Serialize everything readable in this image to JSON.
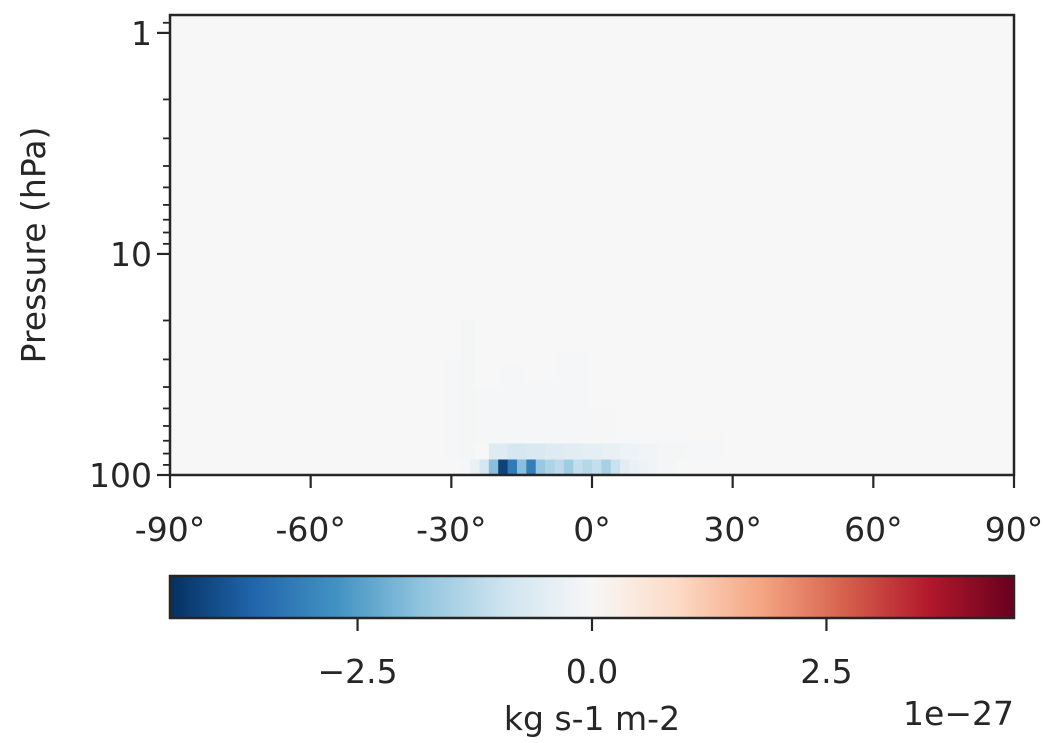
{
  "chart_data": {
    "type": "heatmap",
    "title": "",
    "xlabel": "",
    "ylabel": "Pressure (hPa)",
    "x_ticks": [
      "-90°",
      "-60°",
      "-30°",
      "0°",
      "30°",
      "60°",
      "90°"
    ],
    "x_tick_values": [
      -90,
      -60,
      -30,
      0,
      30,
      60,
      90
    ],
    "xlim": [
      -90,
      90
    ],
    "y_ticks": [
      "1",
      "10",
      "100"
    ],
    "y_tick_values": [
      1,
      10,
      100
    ],
    "ylim": [
      1,
      100
    ],
    "y_scale": "log",
    "y_inverted": true,
    "background_value": 0,
    "cells": [
      {
        "lat": [
          -28,
          -26
        ],
        "p": [
          85,
          100
        ],
        "value": -0.05
      },
      {
        "lat": [
          -26,
          -24
        ],
        "p": [
          85,
          100
        ],
        "value": -0.3
      },
      {
        "lat": [
          -24,
          -22
        ],
        "p": [
          85,
          100
        ],
        "value": -0.8
      },
      {
        "lat": [
          -22,
          -20
        ],
        "p": [
          85,
          100
        ],
        "value": -1.9
      },
      {
        "lat": [
          -20,
          -18
        ],
        "p": [
          85,
          100
        ],
        "value": -4.2
      },
      {
        "lat": [
          -18,
          -16
        ],
        "p": [
          85,
          100
        ],
        "value": -3.2
      },
      {
        "lat": [
          -16,
          -14
        ],
        "p": [
          85,
          100
        ],
        "value": -1.9
      },
      {
        "lat": [
          -14,
          -12
        ],
        "p": [
          85,
          100
        ],
        "value": -3.1
      },
      {
        "lat": [
          -12,
          -10
        ],
        "p": [
          85,
          100
        ],
        "value": -1.7
      },
      {
        "lat": [
          -10,
          -8
        ],
        "p": [
          85,
          100
        ],
        "value": -1.4
      },
      {
        "lat": [
          -8,
          -6
        ],
        "p": [
          85,
          100
        ],
        "value": -1.2
      },
      {
        "lat": [
          -6,
          -4
        ],
        "p": [
          85,
          100
        ],
        "value": -1.6
      },
      {
        "lat": [
          -4,
          -2
        ],
        "p": [
          85,
          100
        ],
        "value": -1.1
      },
      {
        "lat": [
          -2,
          0
        ],
        "p": [
          85,
          100
        ],
        "value": -1.3
      },
      {
        "lat": [
          0,
          2
        ],
        "p": [
          85,
          100
        ],
        "value": -1.1
      },
      {
        "lat": [
          2,
          4
        ],
        "p": [
          85,
          100
        ],
        "value": -1.5
      },
      {
        "lat": [
          4,
          6
        ],
        "p": [
          85,
          100
        ],
        "value": -1.0
      },
      {
        "lat": [
          6,
          8
        ],
        "p": [
          85,
          100
        ],
        "value": -0.5
      },
      {
        "lat": [
          8,
          10
        ],
        "p": [
          85,
          100
        ],
        "value": -0.3
      },
      {
        "lat": [
          10,
          12
        ],
        "p": [
          85,
          100
        ],
        "value": -0.25
      },
      {
        "lat": [
          12,
          14
        ],
        "p": [
          85,
          100
        ],
        "value": -0.15
      },
      {
        "lat": [
          14,
          18
        ],
        "p": [
          85,
          100
        ],
        "value": -0.08
      },
      {
        "lat": [
          -22,
          -18
        ],
        "p": [
          72,
          85
        ],
        "value": -0.6
      },
      {
        "lat": [
          -18,
          -14
        ],
        "p": [
          72,
          85
        ],
        "value": -0.8
      },
      {
        "lat": [
          -14,
          -10
        ],
        "p": [
          72,
          85
        ],
        "value": -0.7
      },
      {
        "lat": [
          -10,
          -6
        ],
        "p": [
          72,
          85
        ],
        "value": -0.6
      },
      {
        "lat": [
          -6,
          -2
        ],
        "p": [
          72,
          85
        ],
        "value": -0.5
      },
      {
        "lat": [
          -2,
          2
        ],
        "p": [
          72,
          85
        ],
        "value": -0.45
      },
      {
        "lat": [
          2,
          6
        ],
        "p": [
          72,
          85
        ],
        "value": -0.35
      },
      {
        "lat": [
          6,
          10
        ],
        "p": [
          72,
          85
        ],
        "value": -0.25
      },
      {
        "lat": [
          10,
          14
        ],
        "p": [
          72,
          85
        ],
        "value": -0.15
      },
      {
        "lat": [
          14,
          20
        ],
        "p": [
          72,
          85
        ],
        "value": -0.07
      },
      {
        "lat": [
          20,
          28
        ],
        "p": [
          72,
          85
        ],
        "value": -0.04
      },
      {
        "lat": [
          -28,
          -22
        ],
        "p": [
          65,
          72
        ],
        "value": -0.08
      },
      {
        "lat": [
          -22,
          -10
        ],
        "p": [
          65,
          72
        ],
        "value": -0.12
      },
      {
        "lat": [
          -10,
          5
        ],
        "p": [
          65,
          72
        ],
        "value": -0.1
      },
      {
        "lat": [
          5,
          20
        ],
        "p": [
          65,
          72
        ],
        "value": -0.05
      },
      {
        "lat": [
          20,
          28
        ],
        "p": [
          65,
          72
        ],
        "value": -0.03
      },
      {
        "lat": [
          -31,
          -28
        ],
        "p": [
          30,
          85
        ],
        "value": -0.04
      },
      {
        "lat": [
          -28,
          -25
        ],
        "p": [
          20,
          85
        ],
        "value": -0.07
      },
      {
        "lat": [
          -25,
          -20
        ],
        "p": [
          40,
          72
        ],
        "value": -0.05
      },
      {
        "lat": [
          -20,
          -15
        ],
        "p": [
          32,
          72
        ],
        "value": -0.04
      },
      {
        "lat": [
          -15,
          -8
        ],
        "p": [
          38,
          72
        ],
        "value": -0.06
      },
      {
        "lat": [
          -8,
          -1
        ],
        "p": [
          28,
          72
        ],
        "value": -0.04
      },
      {
        "lat": [
          -1,
          5
        ],
        "p": [
          50,
          72
        ],
        "value": -0.03
      }
    ],
    "colorbar": {
      "label": "kg s-1 m-2",
      "ticks": [
        "−2.5",
        "0.0",
        "2.5"
      ],
      "tick_values": [
        -2.5,
        0.0,
        2.5
      ],
      "range": [
        -4.5,
        4.5
      ],
      "offset_text": "1e−27",
      "colormap": "RdBu_r"
    }
  }
}
